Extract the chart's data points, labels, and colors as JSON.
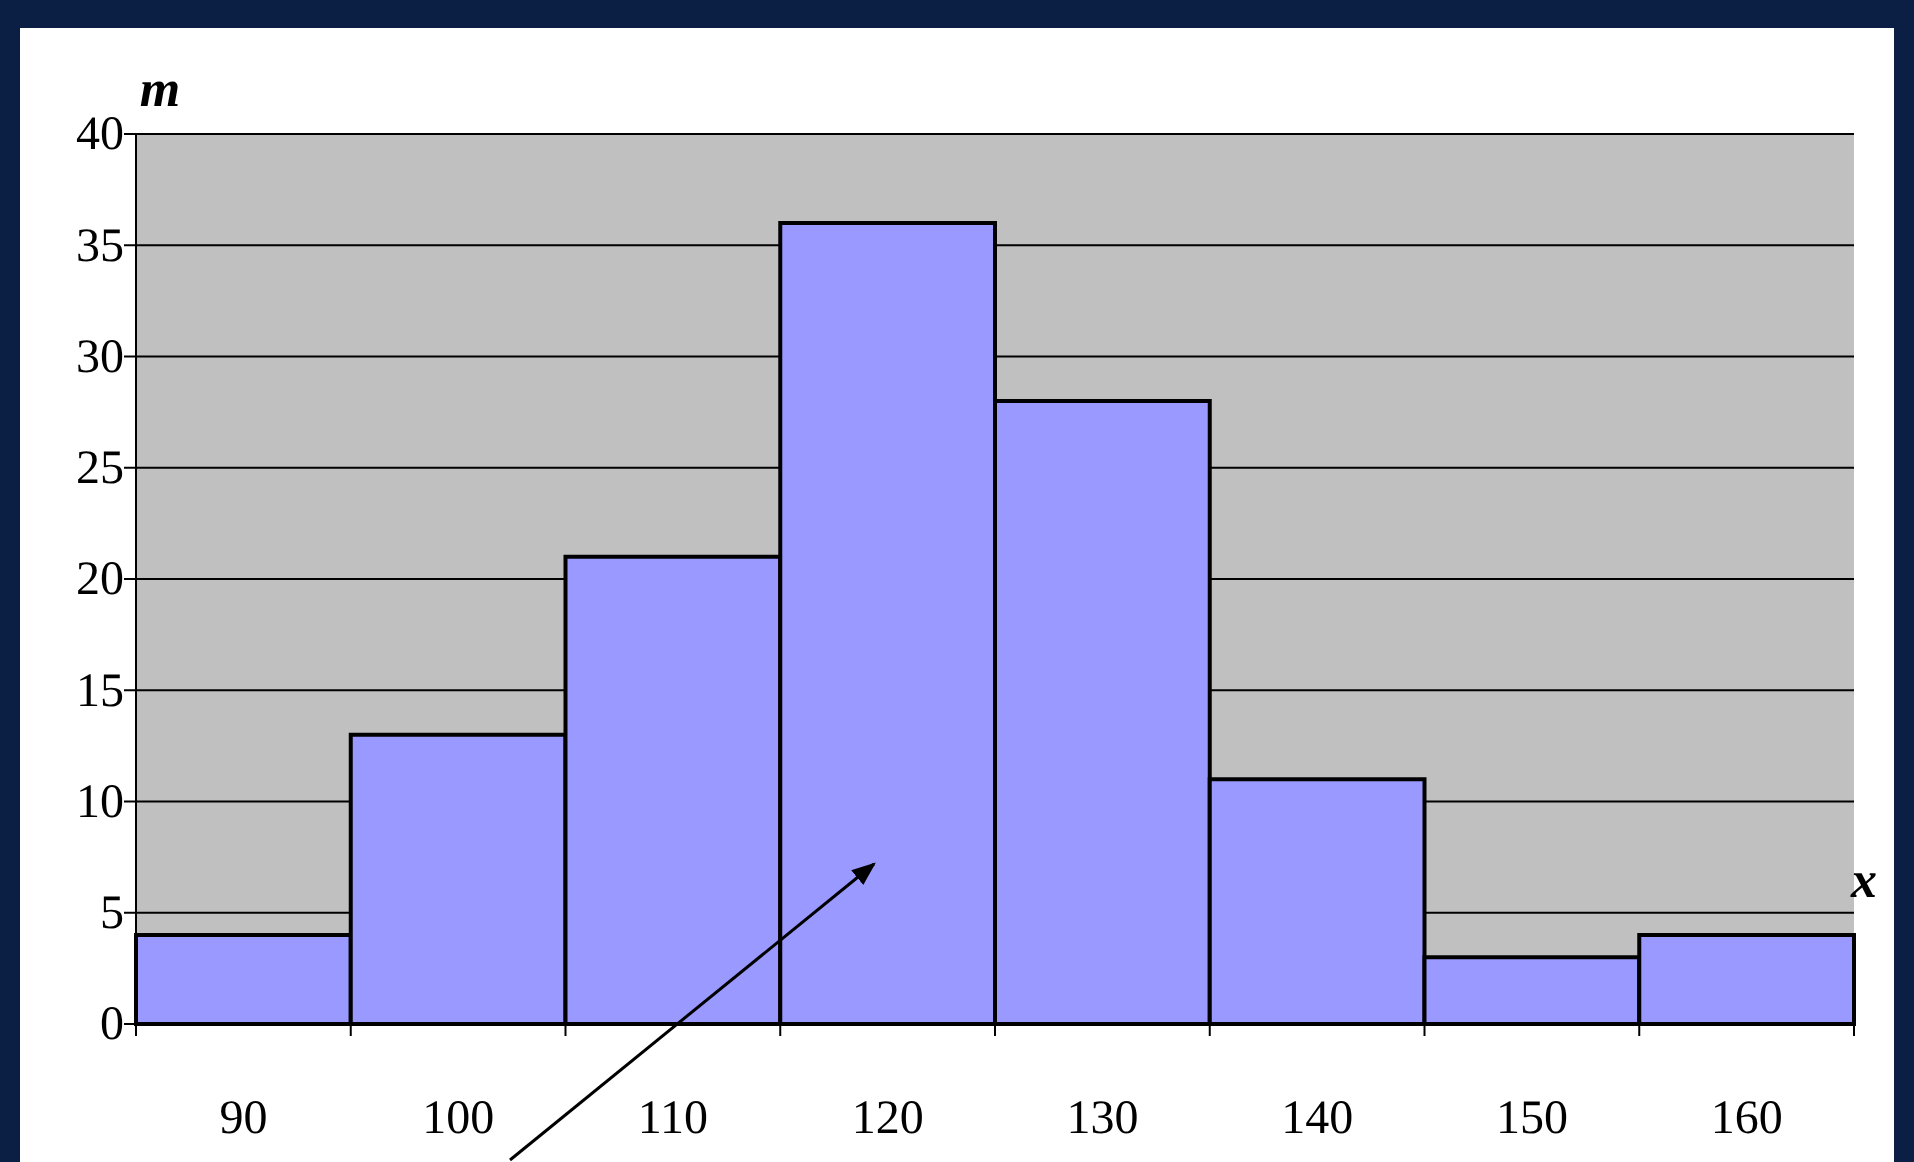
{
  "chart_data": {
    "type": "histogram",
    "xlabel": "x",
    "ylabel": "m",
    "bins": [
      85,
      95,
      105,
      115,
      125,
      135,
      145,
      155,
      165
    ],
    "values": [
      4,
      13,
      21,
      36,
      28,
      11,
      3,
      4
    ],
    "color": "#9999ff",
    "xlim": [
      85,
      165
    ],
    "xticks": [
      {
        "value": 85,
        "label": null
      },
      90,
      {
        "value": 95,
        "label": null
      },
      100,
      {
        "value": 105,
        "label": null
      },
      110,
      {
        "value": 115,
        "label": null
      },
      120,
      {
        "value": 125,
        "label": null
      },
      130,
      {
        "value": 135,
        "label": null
      },
      140,
      {
        "value": 145,
        "label": null
      },
      150,
      {
        "value": 155,
        "label": null
      },
      160,
      {
        "value": 165,
        "label": null
      }
    ],
    "ylim": [
      0,
      40
    ],
    "yticks": [
      0,
      5,
      10,
      15,
      20,
      25,
      30,
      35,
      40
    ],
    "grid": "y"
  }
}
